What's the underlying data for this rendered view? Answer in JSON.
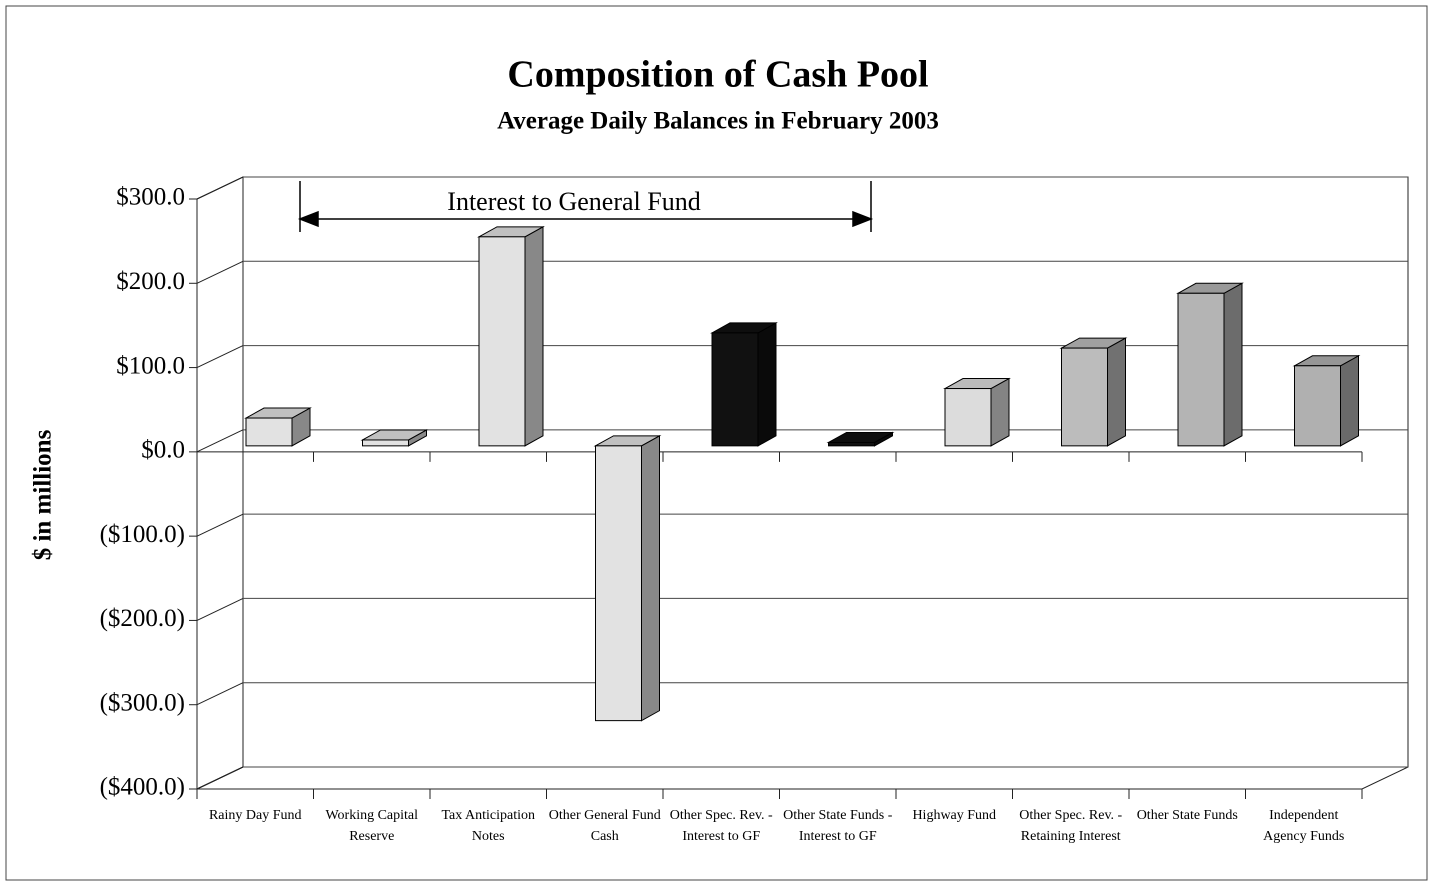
{
  "chart_data": {
    "type": "bar3d",
    "title": "Composition of Cash Pool",
    "subtitle": "Average Daily Balances in February 2003",
    "y_label": "$ in millions",
    "annotation": "Interest to General Fund",
    "categories": [
      "Rainy Day Fund",
      "Working Capital Reserve",
      "Tax Anticipation Notes",
      "Other General Fund Cash",
      "Other Spec. Rev. - Interest to GF",
      "Other State Funds - Interest to GF",
      "Highway Fund",
      "Other Spec. Rev. - Retaining Interest",
      "Other State Funds",
      "Independent Agency Funds"
    ],
    "values": [
      33,
      7,
      248,
      -326,
      134,
      4,
      68,
      116,
      181,
      95
    ],
    "colors": [
      "#e2e2e2",
      "#e2e2e2",
      "#e2e2e2",
      "#e2e2e2",
      "#111111",
      "#111111",
      "#dcdcdc",
      "#bcbcbc",
      "#b4b4b4",
      "#b0b0b0"
    ],
    "ylim": [
      -400,
      300
    ],
    "yticks": [
      {
        "value": 300,
        "label": "$300.0"
      },
      {
        "value": 200,
        "label": "$200.0"
      },
      {
        "value": 100,
        "label": "$100.0"
      },
      {
        "value": 0,
        "label": "$0.0"
      },
      {
        "value": -100,
        "label": "($100.0)"
      },
      {
        "value": -200,
        "label": "($200.0)"
      },
      {
        "value": -300,
        "label": "($300.0)"
      },
      {
        "value": -400,
        "label": "($400.0)"
      }
    ],
    "grid": true
  }
}
